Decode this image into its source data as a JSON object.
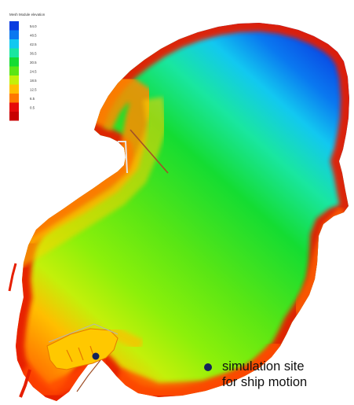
{
  "legend": {
    "title": "Mesh Module elevation",
    "stops": [
      {
        "label": "54.0",
        "color": "#0a3ce0"
      },
      {
        "label": "48.5",
        "color": "#0a78f0"
      },
      {
        "label": "42.5",
        "color": "#12c8f0"
      },
      {
        "label": "36.5",
        "color": "#19e6a0"
      },
      {
        "label": "30.5",
        "color": "#14dc32"
      },
      {
        "label": "24.5",
        "color": "#5ae614"
      },
      {
        "label": "18.5",
        "color": "#c3f00a"
      },
      {
        "label": "12.5",
        "color": "#ffbe00"
      },
      {
        "label": "6.5",
        "color": "#ff7800"
      },
      {
        "label": "0.5",
        "color": "#e60a0a"
      },
      {
        "label": "",
        "color": "#c80000"
      }
    ]
  },
  "annotation": {
    "line1": "simulation site",
    "line2": "for ship motion"
  },
  "colors": {
    "marker": "#14235a",
    "breakwater": "#a05028",
    "shore": "#e61e00"
  }
}
